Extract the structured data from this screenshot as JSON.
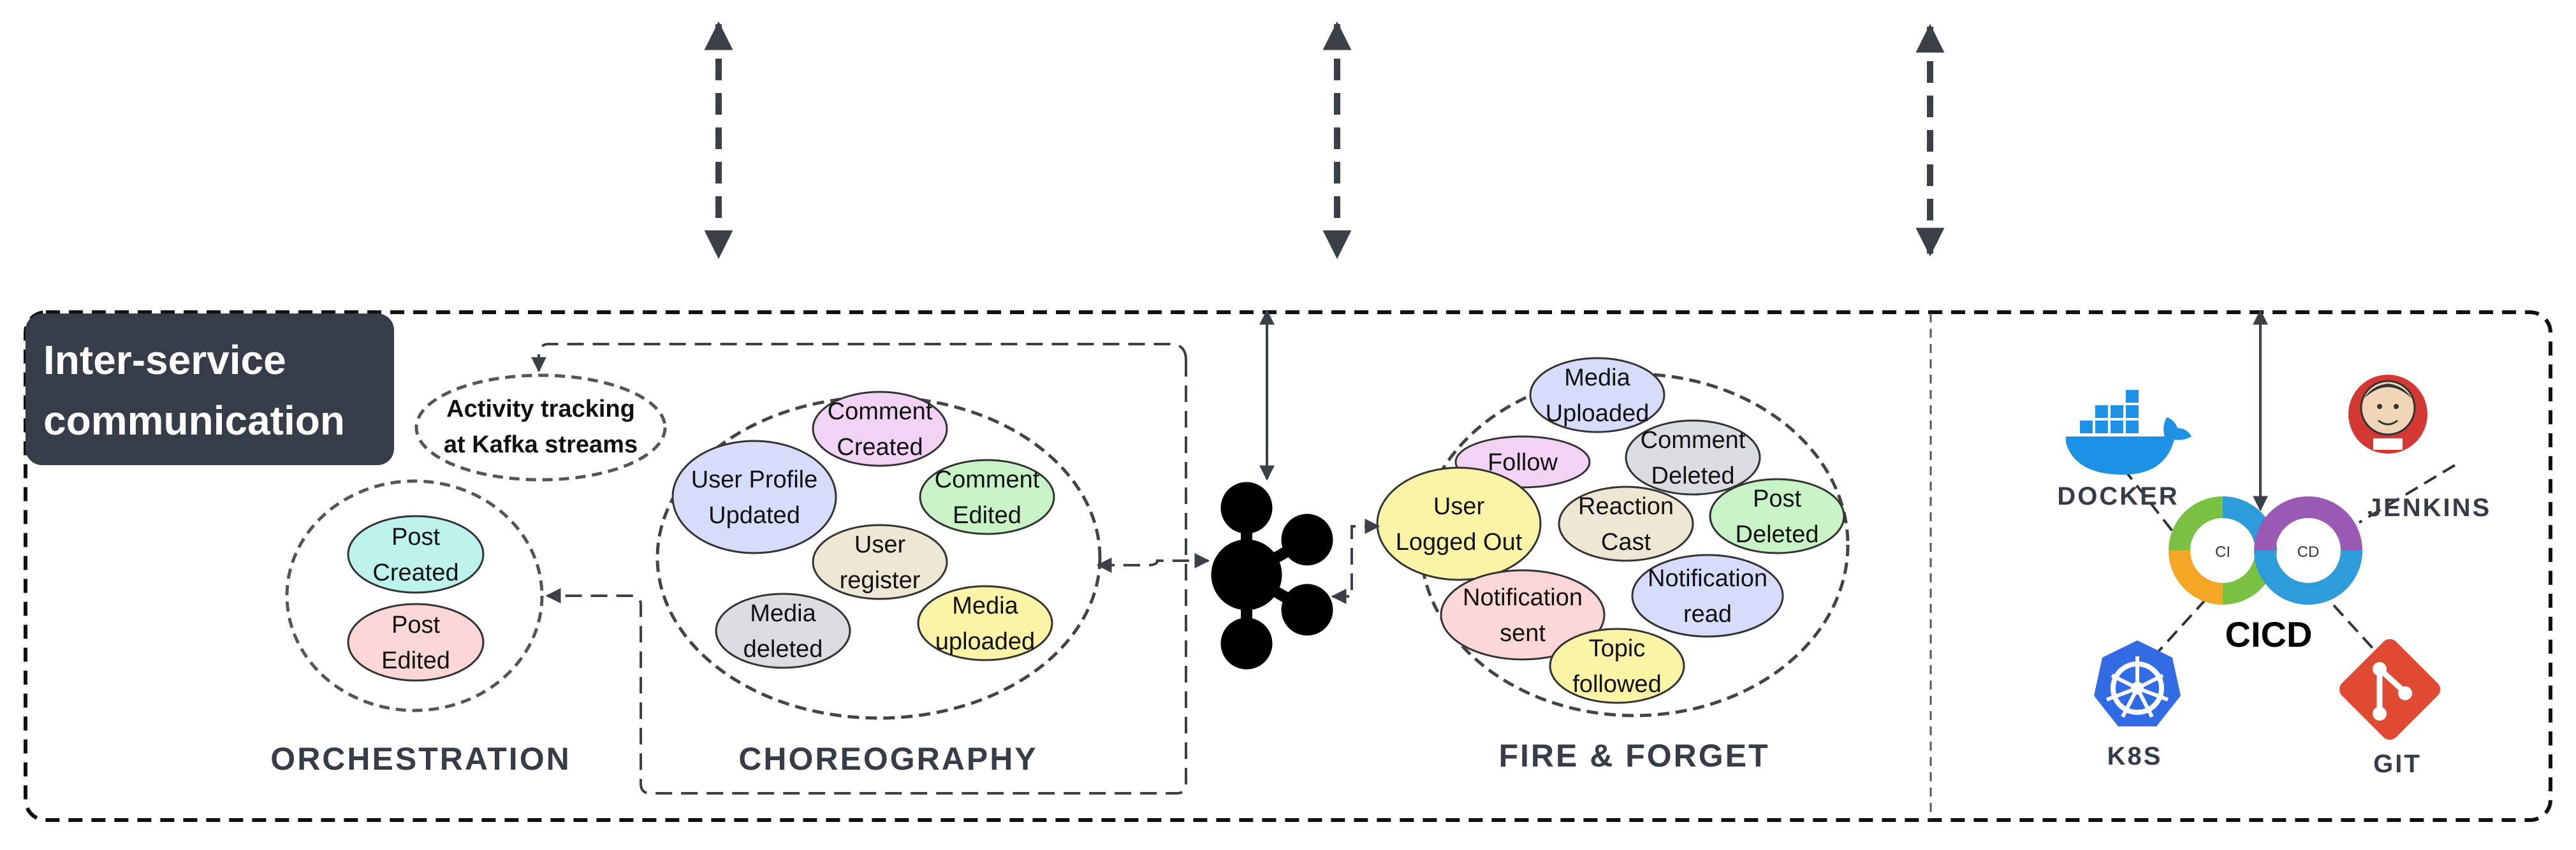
{
  "title": "Inter-service communication",
  "activity_tracking": [
    "Activity tracking",
    "at Kafka streams"
  ],
  "sections": {
    "orchestration": "ORCHESTRATION",
    "choreography": "CHOREOGRAPHY",
    "fire_and_forget": "FIRE & FORGET"
  },
  "orchestration_events": [
    {
      "lines": [
        "Post",
        "Created"
      ],
      "color": "#bdf2ec"
    },
    {
      "lines": [
        "Post",
        "Edited"
      ],
      "color": "#fbd6d6"
    }
  ],
  "choreography_events": [
    {
      "lines": [
        "Comment",
        "Created"
      ],
      "color": "#f3d3f5"
    },
    {
      "lines": [
        "User Profile",
        "Updated"
      ],
      "color": "#d8dcfb"
    },
    {
      "lines": [
        "Comment",
        "Edited"
      ],
      "color": "#c7f3c7"
    },
    {
      "lines": [
        "User",
        "register"
      ],
      "color": "#ede6d3"
    },
    {
      "lines": [
        "Media",
        "deleted"
      ],
      "color": "#d9dde2"
    },
    {
      "lines": [
        "Media",
        "uploaded"
      ],
      "color": "#fbf3a6"
    }
  ],
  "fire_forget_events": [
    {
      "lines": [
        "Media",
        "Uploaded"
      ],
      "color": "#d8dcfb"
    },
    {
      "lines": [
        "Follow"
      ],
      "color": "#f3d3f5"
    },
    {
      "lines": [
        "Comment",
        "Deleted"
      ],
      "color": "#d9dde2"
    },
    {
      "lines": [
        "User",
        "Logged Out"
      ],
      "color": "#fbf3a6"
    },
    {
      "lines": [
        "Reaction",
        "Cast"
      ],
      "color": "#ede6d3"
    },
    {
      "lines": [
        "Post",
        "Deleted"
      ],
      "color": "#c7f3c7"
    },
    {
      "lines": [
        "Notification",
        "sent"
      ],
      "color": "#fbd6d6"
    },
    {
      "lines": [
        "Notification",
        "read"
      ],
      "color": "#d8dcfb"
    },
    {
      "lines": [
        "Topic",
        "followed"
      ],
      "color": "#fbf3a6"
    }
  ],
  "cicd": {
    "title": "CICD",
    "ci_label": "CI",
    "cd_label": "CD",
    "tools": {
      "docker": "DOCKER",
      "jenkins": "JENKINS",
      "k8s": "K8S",
      "git": "GIT"
    }
  },
  "colors": {
    "title_box": "#373d48",
    "arrow": "#3a3f48",
    "docker_blue": "#1d91e6",
    "k8s_blue": "#326ce5",
    "git_red": "#e04a32",
    "ci_orange": "#f5a623",
    "ci_green": "#7ac143",
    "cd_purple": "#9b59b6",
    "cd_blue": "#2d9cdb"
  }
}
